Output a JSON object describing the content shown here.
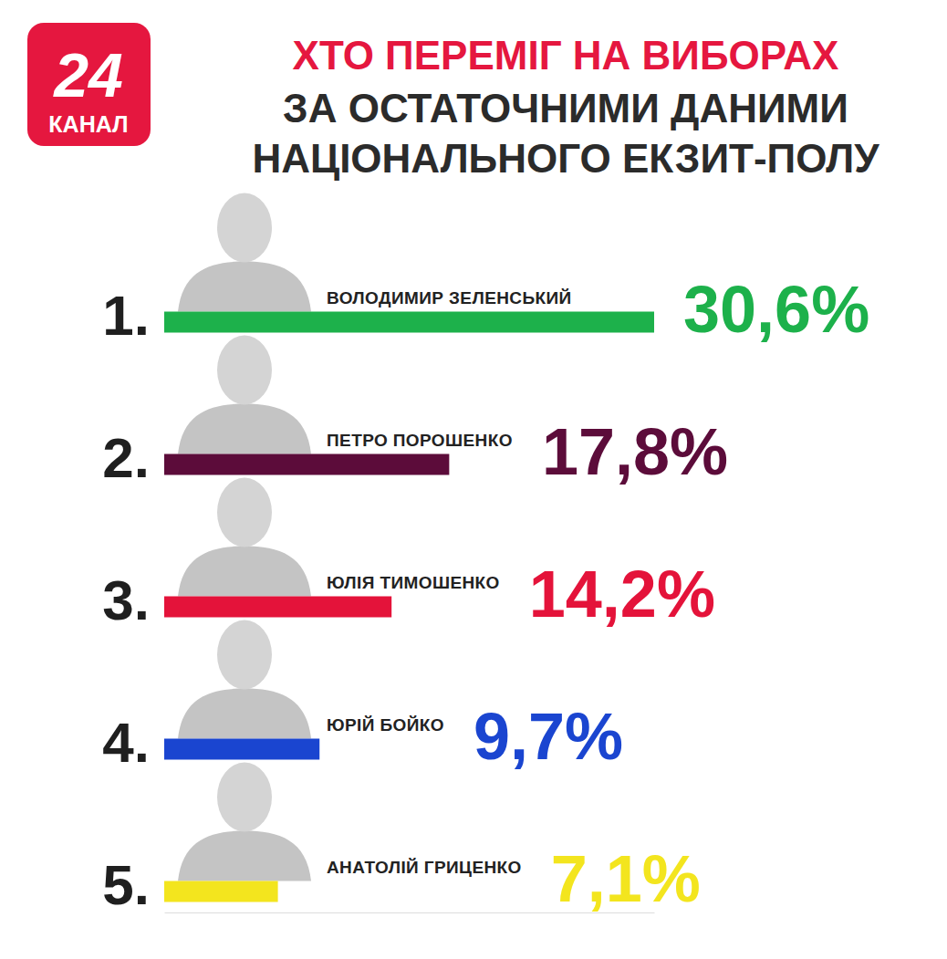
{
  "logo": {
    "number": "24",
    "text": "КАНАЛ"
  },
  "chart_data": {
    "type": "bar",
    "orientation": "horizontal",
    "title": "ХТО ПЕРЕМІГ НА ВИБОРАХ",
    "subtitle": [
      "ЗА ОСТАТОЧНИМИ ДАНИМИ",
      "НАЦІОНАЛЬНОГО ЕКЗИТ-ПОЛУ"
    ],
    "rank_labels": [
      "1.",
      "2.",
      "3.",
      "4.",
      "5."
    ],
    "categories": [
      "ВОЛОДИМИР ЗЕЛЕНСЬКИЙ",
      "ПЕТРО ПОРОШЕНКО",
      "ЮЛІЯ ТИМОШЕНКО",
      "ЮРІЙ БОЙКО",
      "АНАТОЛІЙ ГРИЦЕНКО"
    ],
    "values": [
      30.6,
      17.8,
      14.2,
      9.7,
      7.1
    ],
    "value_labels": [
      "30,6%",
      "17,8%",
      "14,2%",
      "9,7%",
      "7,1%"
    ],
    "colors": [
      "#1db14b",
      "#5c0c3a",
      "#e4133a",
      "#1a45d0",
      "#f3e51e"
    ],
    "xlim": [
      0,
      30.6
    ],
    "tick_labels": false,
    "data_labels": true
  }
}
